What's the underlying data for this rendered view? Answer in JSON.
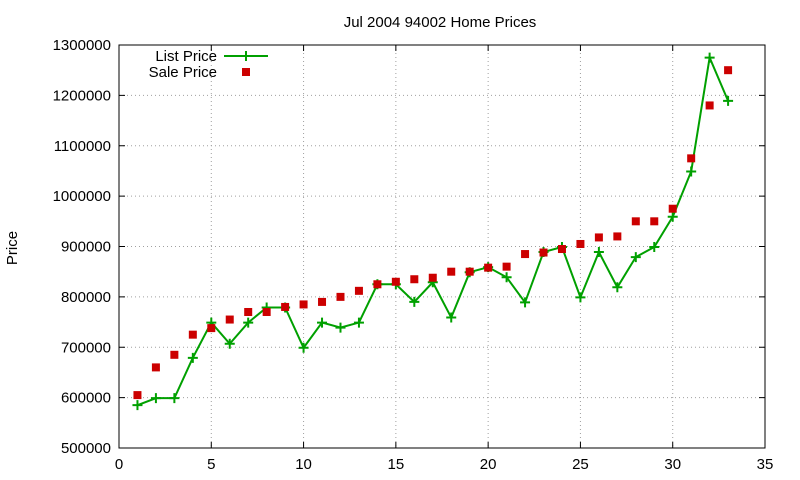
{
  "colors": {
    "list_price": "#00a000",
    "sale_price": "#cc0000",
    "grid": "#a0a0a0",
    "axis": "#000000"
  },
  "chart_data": {
    "type": "line",
    "title": "Jul 2004 94002 Home Prices",
    "xlabel": "",
    "ylabel": "Price",
    "xlim": [
      0,
      35
    ],
    "ylim": [
      500000,
      1300000
    ],
    "xticks": [
      0,
      5,
      10,
      15,
      20,
      25,
      30,
      35
    ],
    "yticks": [
      500000,
      600000,
      700000,
      800000,
      900000,
      1000000,
      1100000,
      1200000,
      1300000
    ],
    "grid": true,
    "legend_position": "top-left",
    "series": [
      {
        "name": "List Price",
        "style": "linespoints",
        "marker": "plus",
        "x": [
          1,
          2,
          3,
          4,
          5,
          6,
          7,
          8,
          9,
          10,
          11,
          12,
          13,
          14,
          15,
          16,
          17,
          18,
          19,
          20,
          21,
          22,
          23,
          24,
          25,
          26,
          27,
          28,
          29,
          30,
          31,
          32,
          33
        ],
        "values": [
          585000,
          599000,
          599000,
          679000,
          749000,
          707000,
          749000,
          779000,
          779000,
          699000,
          749000,
          739000,
          749000,
          825000,
          825000,
          790000,
          829000,
          759000,
          849000,
          859000,
          839000,
          789000,
          889000,
          899000,
          799000,
          889000,
          819000,
          879000,
          899000,
          959000,
          1049000,
          1275000,
          1189000
        ]
      },
      {
        "name": "Sale Price",
        "style": "points",
        "marker": "square",
        "x": [
          1,
          2,
          3,
          4,
          5,
          6,
          7,
          8,
          9,
          10,
          11,
          12,
          13,
          14,
          15,
          16,
          17,
          18,
          19,
          20,
          21,
          22,
          23,
          24,
          25,
          26,
          27,
          28,
          29,
          30,
          31,
          32,
          33
        ],
        "values": [
          605000,
          660000,
          685000,
          725000,
          738000,
          755000,
          770000,
          770000,
          780000,
          785000,
          790000,
          800000,
          812000,
          825000,
          830000,
          835000,
          838000,
          850000,
          850000,
          858000,
          860000,
          885000,
          888000,
          895000,
          905000,
          918000,
          920000,
          950000,
          950000,
          975000,
          1075000,
          1180000,
          1250000
        ]
      }
    ]
  }
}
